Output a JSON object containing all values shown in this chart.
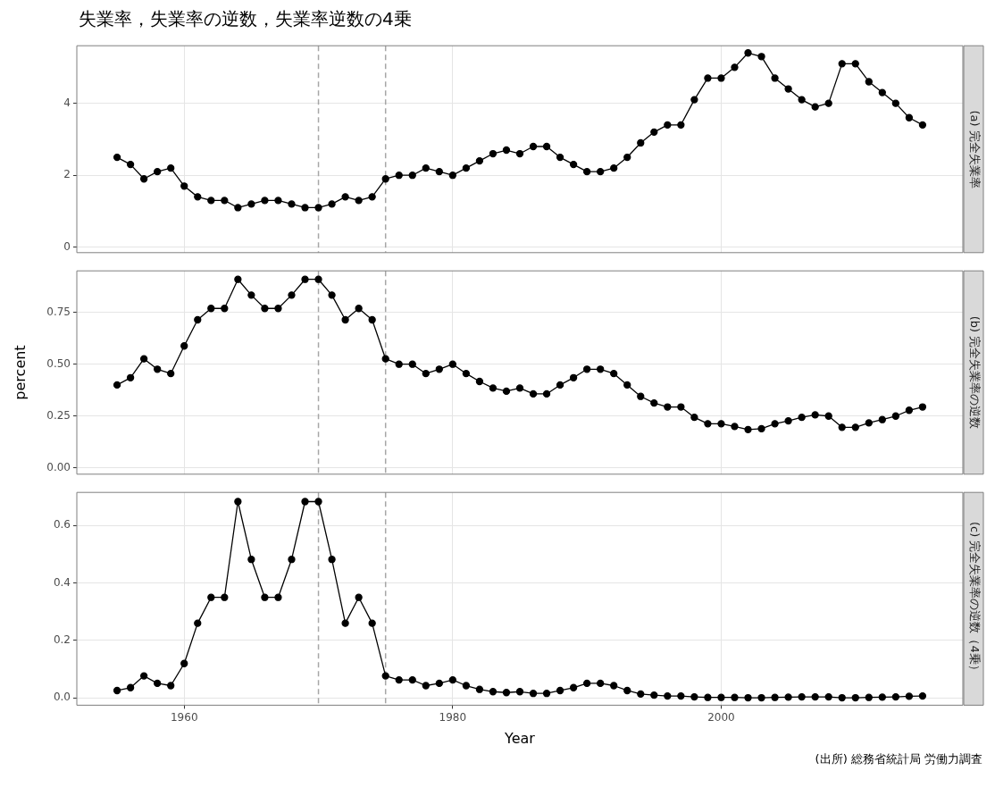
{
  "chart_data": [
    {
      "type": "line",
      "title": "失業率，失業率の逆数，失業率逆数の4乗",
      "y2label": "(a) 完全失業率",
      "color": "#000000",
      "marker": "circle",
      "line_style": "solid",
      "grid": true,
      "tick_labels": "y",
      "xlim": [
        1952,
        2018
      ],
      "xticks": [
        1960,
        1980,
        2000
      ],
      "ylim": [
        -0.15,
        5.6
      ],
      "yticks": [
        0,
        2,
        4
      ],
      "ref_lines": [
        {
          "axis": "x",
          "value": 1970,
          "color": "#a6a6a6",
          "line_style": "dashed"
        },
        {
          "axis": "x",
          "value": 1975,
          "color": "#a6a6a6",
          "line_style": "dashed"
        }
      ],
      "x": [
        1955,
        1956,
        1957,
        1958,
        1959,
        1960,
        1961,
        1962,
        1963,
        1964,
        1965,
        1966,
        1967,
        1968,
        1969,
        1970,
        1971,
        1972,
        1973,
        1974,
        1975,
        1976,
        1977,
        1978,
        1979,
        1980,
        1981,
        1982,
        1983,
        1984,
        1985,
        1986,
        1987,
        1988,
        1989,
        1990,
        1991,
        1992,
        1993,
        1994,
        1995,
        1996,
        1997,
        1998,
        1999,
        2000,
        2001,
        2002,
        2003,
        2004,
        2005,
        2006,
        2007,
        2008,
        2009,
        2010,
        2011,
        2012,
        2013,
        2014,
        2015
      ],
      "values": [
        2.5,
        2.3,
        1.9,
        2.1,
        2.2,
        1.7,
        1.4,
        1.3,
        1.3,
        1.1,
        1.2,
        1.3,
        1.3,
        1.2,
        1.1,
        1.1,
        1.2,
        1.4,
        1.3,
        1.4,
        1.9,
        2.0,
        2.0,
        2.2,
        2.1,
        2.0,
        2.2,
        2.4,
        2.6,
        2.7,
        2.6,
        2.8,
        2.8,
        2.5,
        2.3,
        2.1,
        2.1,
        2.2,
        2.5,
        2.9,
        3.2,
        3.4,
        3.4,
        4.1,
        4.7,
        4.7,
        5.0,
        5.4,
        5.3,
        4.7,
        4.4,
        4.1,
        3.9,
        4.0,
        5.1,
        5.1,
        4.6,
        4.3,
        4.0,
        3.6,
        3.4
      ]
    },
    {
      "type": "line",
      "ylabel": "percent",
      "y2label": "(b) 完全失業率の逆数",
      "color": "#000000",
      "marker": "circle",
      "line_style": "solid",
      "grid": true,
      "tick_labels": "y",
      "xlim": [
        1952,
        2018
      ],
      "xticks": [
        1960,
        1980,
        2000
      ],
      "ylim": [
        -0.03,
        0.95
      ],
      "yticks": [
        {
          "value": 0,
          "label": "0.00"
        },
        {
          "value": 0.25,
          "label": "0.25"
        },
        {
          "value": 0.5,
          "label": "0.50"
        },
        {
          "value": 0.75,
          "label": "0.75"
        }
      ],
      "ref_lines": [
        {
          "axis": "x",
          "value": 1970,
          "color": "#a6a6a6",
          "line_style": "dashed"
        },
        {
          "axis": "x",
          "value": 1975,
          "color": "#a6a6a6",
          "line_style": "dashed"
        }
      ],
      "x": [
        1955,
        1956,
        1957,
        1958,
        1959,
        1960,
        1961,
        1962,
        1963,
        1964,
        1965,
        1966,
        1967,
        1968,
        1969,
        1970,
        1971,
        1972,
        1973,
        1974,
        1975,
        1976,
        1977,
        1978,
        1979,
        1980,
        1981,
        1982,
        1983,
        1984,
        1985,
        1986,
        1987,
        1988,
        1989,
        1990,
        1991,
        1992,
        1993,
        1994,
        1995,
        1996,
        1997,
        1998,
        1999,
        2000,
        2001,
        2002,
        2003,
        2004,
        2005,
        2006,
        2007,
        2008,
        2009,
        2010,
        2011,
        2012,
        2013,
        2014,
        2015
      ],
      "values": [
        0.4,
        0.435,
        0.526,
        0.476,
        0.455,
        0.588,
        0.714,
        0.769,
        0.769,
        0.909,
        0.833,
        0.769,
        0.769,
        0.833,
        0.909,
        0.909,
        0.833,
        0.714,
        0.769,
        0.714,
        0.526,
        0.5,
        0.5,
        0.455,
        0.476,
        0.5,
        0.455,
        0.417,
        0.385,
        0.37,
        0.385,
        0.357,
        0.357,
        0.4,
        0.435,
        0.476,
        0.476,
        0.455,
        0.4,
        0.345,
        0.313,
        0.294,
        0.294,
        0.244,
        0.213,
        0.213,
        0.2,
        0.185,
        0.189,
        0.213,
        0.227,
        0.244,
        0.256,
        0.25,
        0.196,
        0.196,
        0.217,
        0.233,
        0.25,
        0.278,
        0.294
      ]
    },
    {
      "type": "line",
      "xlabel": "Year",
      "y2label": "(c) 完全失業率の逆数（4乗）",
      "color": "#000000",
      "marker": "circle",
      "line_style": "solid",
      "grid": true,
      "xlim": [
        1952,
        2018
      ],
      "xticks": [
        1960,
        1980,
        2000
      ],
      "ylim": [
        -0.025,
        0.715
      ],
      "yticks": [
        {
          "value": 0,
          "label": "0.0"
        },
        {
          "value": 0.2,
          "label": "0.2"
        },
        {
          "value": 0.4,
          "label": "0.4"
        },
        {
          "value": 0.6,
          "label": "0.6"
        }
      ],
      "ref_lines": [
        {
          "axis": "x",
          "value": 1970,
          "color": "#a6a6a6",
          "line_style": "dashed"
        },
        {
          "axis": "x",
          "value": 1975,
          "color": "#a6a6a6",
          "line_style": "dashed"
        }
      ],
      "annotations": [
        "(出所) 総務省統計局 労働力調査"
      ],
      "x": [
        1955,
        1956,
        1957,
        1958,
        1959,
        1960,
        1961,
        1962,
        1963,
        1964,
        1965,
        1966,
        1967,
        1968,
        1969,
        1970,
        1971,
        1972,
        1973,
        1974,
        1975,
        1976,
        1977,
        1978,
        1979,
        1980,
        1981,
        1982,
        1983,
        1984,
        1985,
        1986,
        1987,
        1988,
        1989,
        1990,
        1991,
        1992,
        1993,
        1994,
        1995,
        1996,
        1997,
        1998,
        1999,
        2000,
        2001,
        2002,
        2003,
        2004,
        2005,
        2006,
        2007,
        2008,
        2009,
        2010,
        2011,
        2012,
        2013,
        2014,
        2015
      ],
      "values": [
        0.026,
        0.036,
        0.077,
        0.051,
        0.043,
        0.12,
        0.26,
        0.35,
        0.35,
        0.683,
        0.482,
        0.35,
        0.35,
        0.482,
        0.683,
        0.683,
        0.482,
        0.26,
        0.35,
        0.26,
        0.077,
        0.063,
        0.063,
        0.043,
        0.051,
        0.063,
        0.043,
        0.03,
        0.022,
        0.019,
        0.022,
        0.016,
        0.016,
        0.026,
        0.036,
        0.051,
        0.051,
        0.043,
        0.026,
        0.014,
        0.01,
        0.007,
        0.007,
        0.004,
        0.002,
        0.002,
        0.002,
        0.001,
        0.001,
        0.002,
        0.003,
        0.004,
        0.004,
        0.004,
        0.001,
        0.001,
        0.002,
        0.003,
        0.004,
        0.006,
        0.007
      ]
    }
  ]
}
